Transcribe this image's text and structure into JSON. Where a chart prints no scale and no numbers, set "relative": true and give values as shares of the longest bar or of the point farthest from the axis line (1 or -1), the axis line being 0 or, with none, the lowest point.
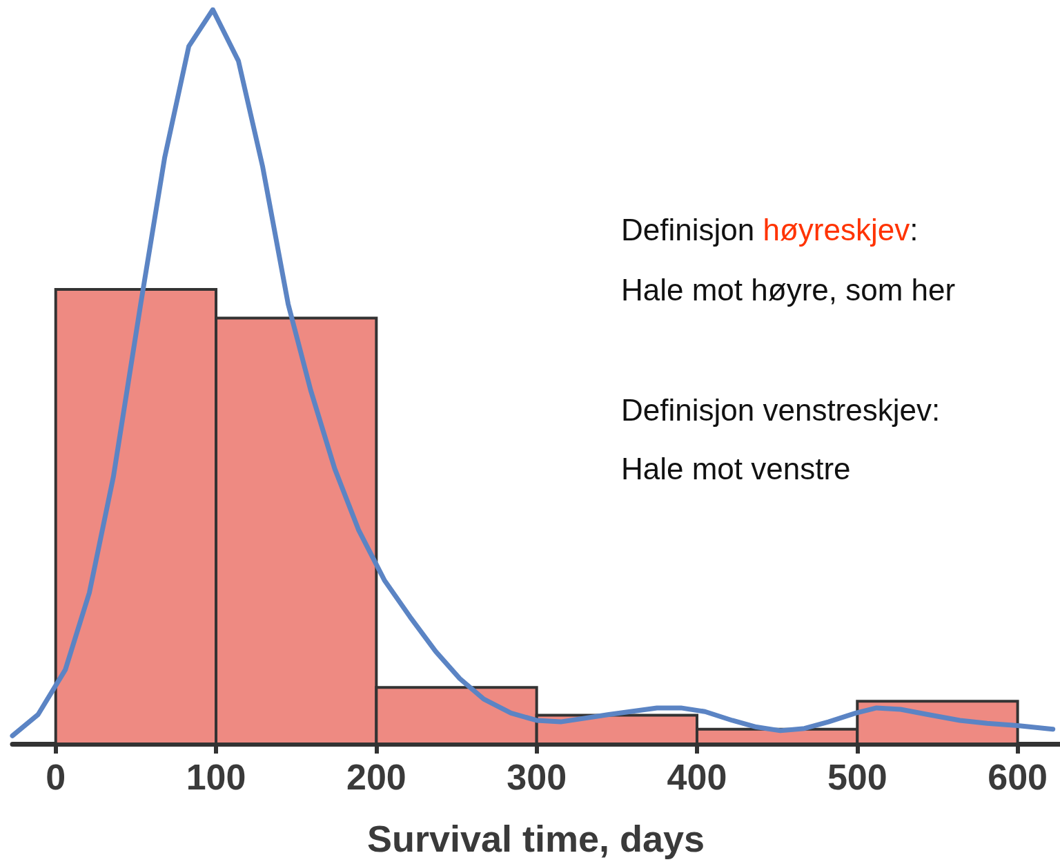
{
  "chart_data": {
    "type": "histogram",
    "relative": true,
    "xlabel": "Survival time, days",
    "bins": [
      0,
      100,
      200,
      300,
      400,
      500,
      600
    ],
    "values": [
      0.619,
      0.58,
      0.077,
      0.039,
      0.02,
      0.058
    ],
    "color": "#ee8a82",
    "xlim": [
      -27,
      626
    ],
    "xticks": [
      0,
      100,
      200,
      300,
      400,
      500,
      600
    ],
    "grid": false,
    "series": [
      {
        "type": "line",
        "color": "#5b84c4",
        "marker": "none",
        "line_style": "solid",
        "x": [
          -27,
          -11,
          6,
          21,
          36,
          53,
          68,
          83,
          98,
          114,
          129,
          145,
          159,
          174,
          189,
          205,
          221,
          237,
          252,
          267,
          284,
          300,
          315,
          345,
          375,
          390,
          405,
          422,
          437,
          452,
          467,
          482,
          499,
          512,
          527,
          544,
          564,
          581,
          600,
          622
        ],
        "values": [
          0.011,
          0.04,
          0.101,
          0.206,
          0.364,
          0.599,
          0.799,
          0.95,
          1.0,
          0.93,
          0.787,
          0.599,
          0.482,
          0.375,
          0.291,
          0.223,
          0.173,
          0.126,
          0.089,
          0.061,
          0.042,
          0.032,
          0.03,
          0.04,
          0.049,
          0.049,
          0.044,
          0.032,
          0.023,
          0.018,
          0.021,
          0.03,
          0.042,
          0.049,
          0.047,
          0.04,
          0.032,
          0.028,
          0.025,
          0.02
        ]
      }
    ],
    "annotations": [
      "Definisjon høyreskjev:",
      "Hale mot høyre, som her",
      "Definisjon venstreskjev:",
      "Hale mot venstre"
    ]
  }
}
